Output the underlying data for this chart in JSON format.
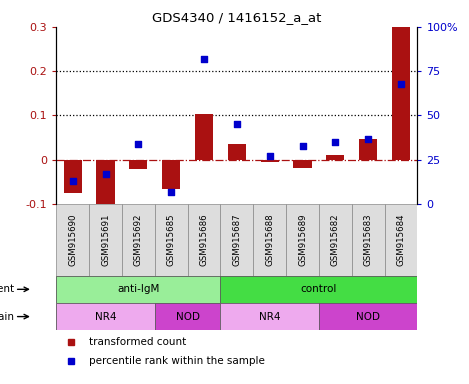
{
  "title": "GDS4340 / 1416152_a_at",
  "samples": [
    "GSM915690",
    "GSM915691",
    "GSM915692",
    "GSM915685",
    "GSM915686",
    "GSM915687",
    "GSM915688",
    "GSM915689",
    "GSM915682",
    "GSM915683",
    "GSM915684"
  ],
  "bar_values": [
    -0.075,
    -0.105,
    -0.02,
    -0.065,
    0.103,
    0.035,
    -0.005,
    -0.018,
    0.01,
    0.048,
    0.3
  ],
  "dot_values_pct": [
    13,
    17,
    34,
    7,
    82,
    45,
    27,
    33,
    35,
    37,
    68
  ],
  "ylim_left": [
    -0.1,
    0.3
  ],
  "ylim_right": [
    0,
    100
  ],
  "yticks_left": [
    -0.1,
    0.0,
    0.1,
    0.2,
    0.3
  ],
  "yticks_right": [
    0,
    25,
    50,
    75,
    100
  ],
  "ytick_labels_left": [
    "-0.1",
    "0",
    "0.1",
    "0.2",
    "0.3"
  ],
  "ytick_labels_right": [
    "0",
    "25",
    "50",
    "75",
    "100%"
  ],
  "hlines": [
    0.1,
    0.2
  ],
  "bar_color": "#AA1111",
  "dot_color": "#0000CC",
  "agent_groups": [
    {
      "label": "anti-IgM",
      "start": 0,
      "end": 5,
      "color": "#99EE99"
    },
    {
      "label": "control",
      "start": 5,
      "end": 11,
      "color": "#44DD44"
    }
  ],
  "strain_groups": [
    {
      "label": "NR4",
      "start": 0,
      "end": 3,
      "color": "#EEAAEE"
    },
    {
      "label": "NOD",
      "start": 3,
      "end": 5,
      "color": "#CC44CC"
    },
    {
      "label": "NR4",
      "start": 5,
      "end": 8,
      "color": "#EEAAEE"
    },
    {
      "label": "NOD",
      "start": 8,
      "end": 11,
      "color": "#CC44CC"
    }
  ],
  "legend_items": [
    {
      "label": "transformed count",
      "color": "#AA1111"
    },
    {
      "label": "percentile rank within the sample",
      "color": "#0000CC"
    }
  ],
  "background_color": "#FFFFFF"
}
